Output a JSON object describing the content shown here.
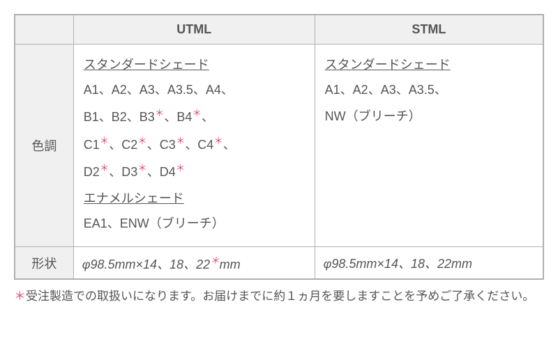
{
  "columns": {
    "col1": "UTML",
    "col2": "STML"
  },
  "row_labels": {
    "shade": "色調",
    "shape": "形状"
  },
  "utml": {
    "standard_title": "スタンダードシェード",
    "standard_line1": "A1、A2、A3、A3.5、A4、",
    "standard_line2_pre": "B1、B2、B3",
    "standard_line2_mid": "、B4",
    "standard_line2_post": "、",
    "standard_line3_c1": "C1",
    "standard_line3_c2": "、C2",
    "standard_line3_c3": "、C3",
    "standard_line3_c4": "、C4",
    "standard_line3_end": "、",
    "standard_line4_d2": "D2",
    "standard_line4_d3": "、D3",
    "standard_line4_d4": "、D4",
    "enamel_title": "エナメルシェード",
    "enamel_line": "EA1、ENW（ブリーチ）",
    "shape_pre": "φ98.5mm×14、18、22",
    "shape_post": "mm"
  },
  "stml": {
    "standard_title": "スタンダードシェード",
    "standard_line1": "A1、A2、A3、A3.5、",
    "standard_line2": "NW（ブリーチ）",
    "shape": "φ98.5mm×14、18、22mm"
  },
  "footnote": {
    "mark": "＊",
    "text": "受注製造での取扱いになります。お届けまでに約１ヵ月を要しますことを予めご了承ください。"
  },
  "style": {
    "asterisk_color": "#e04a7e",
    "border_color": "#b0b0b0",
    "header_bg": "#f0f0f0",
    "text_color": "#555555",
    "font_size_table": 18,
    "font_size_footnote": 17
  }
}
